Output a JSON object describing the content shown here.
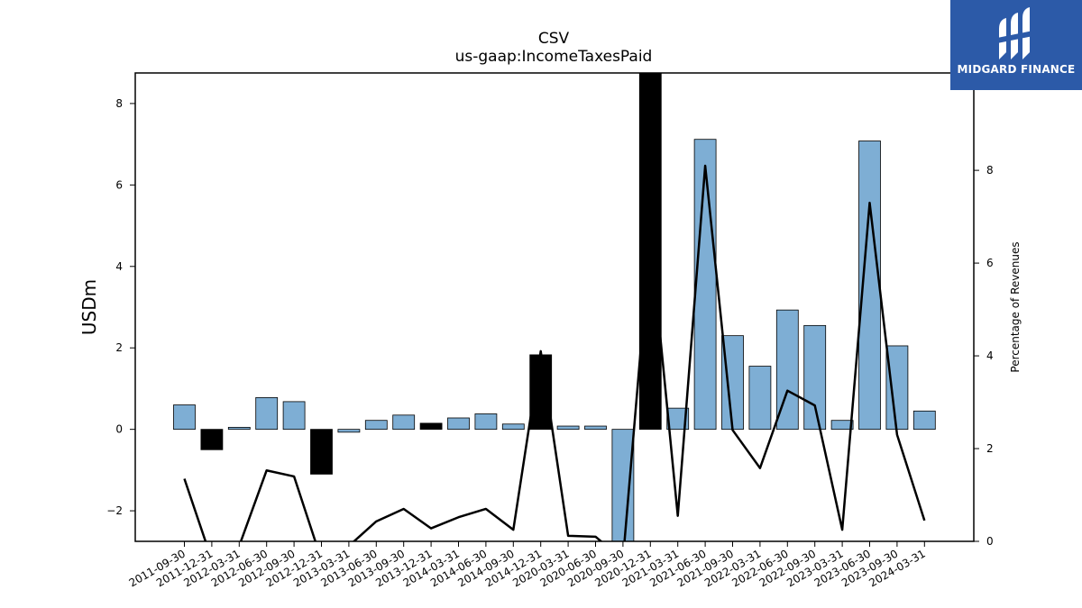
{
  "chart_data": {
    "type": "bar",
    "title": "CSV",
    "subtitle": "us-gaap:IncomeTaxesPaid",
    "ylabel": "USDm",
    "y2label": "Percentage of Revenues",
    "ylim": [
      -2.75,
      8.75
    ],
    "y2lim": [
      0,
      10.1
    ],
    "yticks": [
      -2,
      0,
      2,
      4,
      6,
      8
    ],
    "y2ticks": [
      0,
      2,
      4,
      6,
      8
    ],
    "categories": [
      "2011-09-30",
      "2011-12-31",
      "2012-03-31",
      "2012-06-30",
      "2012-09-30",
      "2012-12-31",
      "2013-03-31",
      "2013-06-30",
      "2013-09-30",
      "2013-12-31",
      "2014-03-31",
      "2014-06-30",
      "2014-09-30",
      "2014-12-31",
      "2020-03-31",
      "2020-06-30",
      "2020-09-30",
      "2020-12-31",
      "2021-03-31",
      "2021-06-30",
      "2021-09-30",
      "2022-03-31",
      "2022-06-30",
      "2022-09-30",
      "2023-03-31",
      "2023-06-30",
      "2023-09-30",
      "2024-03-31"
    ],
    "series": [
      {
        "kind": "bar",
        "values": [
          0.6,
          -0.5,
          0.05,
          0.78,
          0.68,
          -1.1,
          -0.07,
          0.22,
          0.35,
          0.15,
          0.28,
          0.38,
          0.13,
          1.83,
          0.08,
          0.08,
          -2.9,
          9.5,
          0.52,
          7.12,
          2.3,
          1.55,
          2.93,
          2.55,
          0.22,
          7.08,
          2.05,
          0.45
        ],
        "highlight": [
          false,
          true,
          false,
          false,
          false,
          true,
          false,
          false,
          false,
          true,
          false,
          false,
          false,
          true,
          false,
          false,
          false,
          true,
          false,
          false,
          false,
          false,
          false,
          false,
          false,
          false,
          false,
          false
        ]
      },
      {
        "kind": "line",
        "axis": "right",
        "values": [
          1.35,
          -0.4,
          -0.1,
          1.53,
          1.4,
          -0.4,
          -0.1,
          0.43,
          0.7,
          0.28,
          0.52,
          0.7,
          0.25,
          4.1,
          0.12,
          0.1,
          -0.4,
          6.6,
          0.55,
          8.1,
          2.4,
          1.58,
          3.25,
          2.93,
          0.25,
          7.3,
          2.3,
          0.45
        ]
      }
    ],
    "colors": {
      "bar": "#7eaed4",
      "highlight": "#000000",
      "line": "#000000"
    },
    "grid": false
  },
  "logo": {
    "text": "MIDGARD FINANCE",
    "icon": "midgard-logo-icon"
  }
}
